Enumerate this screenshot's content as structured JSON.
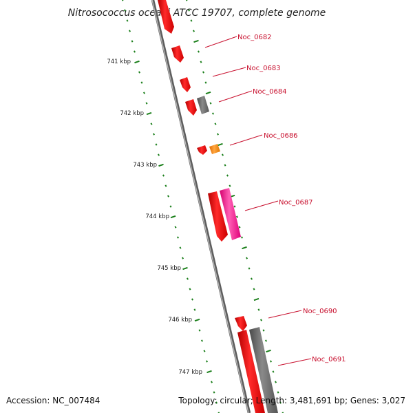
{
  "title": "Nitrosococcus oceani ATCC 19707, complete genome",
  "footer": {
    "accession": "Accession: NC_007484",
    "stats": "Topology: circular; Length: 3,481,691 bp; Genes: 3,027"
  },
  "colors": {
    "backbone": "#7a7a7a",
    "tick": "#1a7f1a",
    "gene_red": "#ee1111",
    "gene_gray": "#6e6e6e",
    "gene_orange": "#ff8c1a",
    "gene_pink": "#ff2d9a",
    "label": "#c8102e"
  },
  "kbp_labels": [
    "741 kbp",
    "742 kbp",
    "743 kbp",
    "744 kbp",
    "745 kbp",
    "746 kbp",
    "747 kbp"
  ],
  "genes": [
    {
      "name": "Noc_0682",
      "color": "red"
    },
    {
      "name": "Noc_0683",
      "color": "red"
    },
    {
      "name": "Noc_0684",
      "color": "gray"
    },
    {
      "name": "Noc_0686",
      "color": "orange"
    },
    {
      "name": "Noc_0687",
      "color": "pink"
    },
    {
      "name": "Noc_0690",
      "color": "red"
    },
    {
      "name": "Noc_0691",
      "color": "gray"
    }
  ]
}
